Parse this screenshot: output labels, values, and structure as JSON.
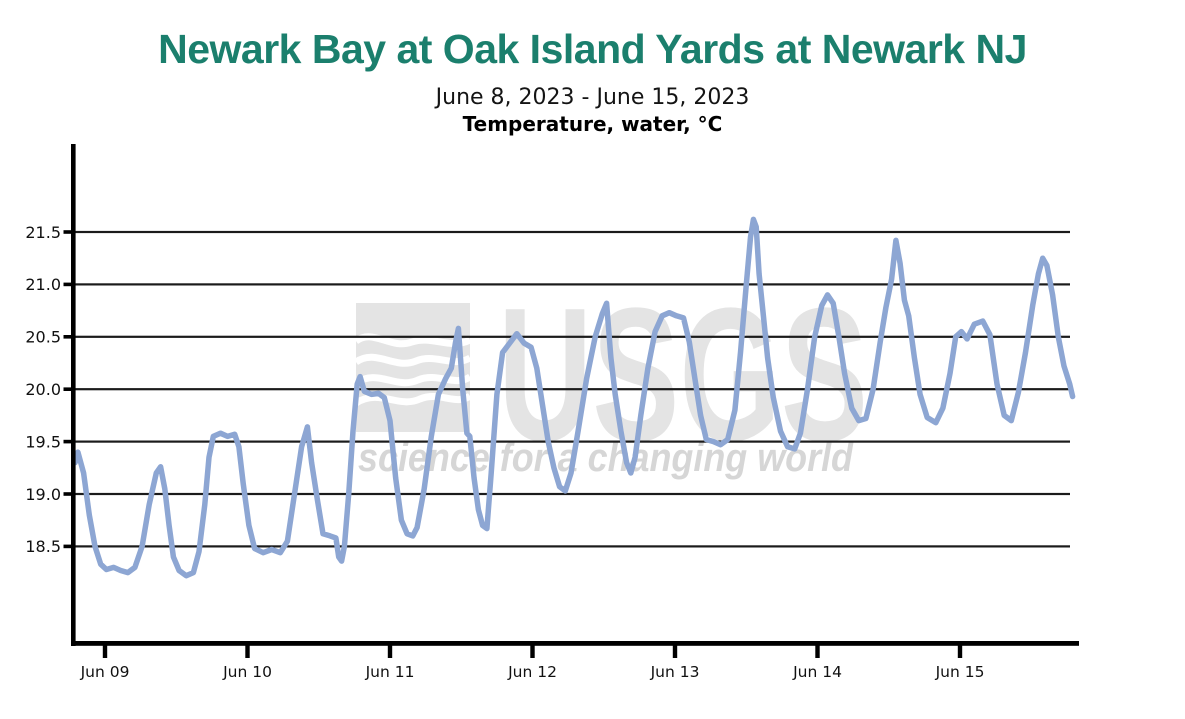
{
  "header": {
    "title": "Newark Bay at Oak Island Yards at Newark NJ",
    "title_color": "#1b7f6d",
    "date_range": "June 8, 2023 - June 15, 2023",
    "parameter": "Temperature, water, °C"
  },
  "watermark": {
    "logo_text": "USGS",
    "tagline": "science for a changing world",
    "logo_color": "#e4e4e4",
    "tagline_color": "#d6d6d6"
  },
  "chart_data": {
    "type": "line",
    "title": "Newark Bay at Oak Island Yards at Newark NJ",
    "subtitle": "June 8, 2023 - June 15, 2023",
    "ylabel": "Temperature, water, °C",
    "xlabel": "",
    "x_unit": "days since June 8, 2023 00:00 (t=1 is Jun 09 00:00)",
    "grid": "horizontal",
    "legend": "none",
    "xlim": [
      0.77,
      7.81
    ],
    "ylim": [
      17.9,
      21.9
    ],
    "yticks": [
      21.5,
      21.0,
      20.5,
      20.0,
      19.5,
      19.0,
      18.5
    ],
    "xticks": [
      {
        "label": "Jun 09",
        "t": 1
      },
      {
        "label": "Jun 10",
        "t": 2
      },
      {
        "label": "Jun 11",
        "t": 3
      },
      {
        "label": "Jun 12",
        "t": 4
      },
      {
        "label": "Jun 13",
        "t": 5
      },
      {
        "label": "Jun 14",
        "t": 6
      },
      {
        "label": "Jun 15",
        "t": 7
      }
    ],
    "axis_color": "#000000",
    "grid_color": "#1b1b1b",
    "series": [
      {
        "name": "Temperature, water, °C",
        "color": "#8da6d3",
        "points": [
          [
            0.79,
            19.3
          ],
          [
            0.81,
            19.4
          ],
          [
            0.85,
            19.2
          ],
          [
            0.89,
            18.8
          ],
          [
            0.93,
            18.5
          ],
          [
            0.97,
            18.33
          ],
          [
            1.01,
            18.28
          ],
          [
            1.06,
            18.3
          ],
          [
            1.11,
            18.27
          ],
          [
            1.16,
            18.25
          ],
          [
            1.21,
            18.3
          ],
          [
            1.26,
            18.5
          ],
          [
            1.31,
            18.9
          ],
          [
            1.36,
            19.2
          ],
          [
            1.39,
            19.26
          ],
          [
            1.42,
            19.05
          ],
          [
            1.45,
            18.7
          ],
          [
            1.48,
            18.4
          ],
          [
            1.52,
            18.27
          ],
          [
            1.57,
            18.22
          ],
          [
            1.62,
            18.25
          ],
          [
            1.66,
            18.45
          ],
          [
            1.7,
            18.9
          ],
          [
            1.73,
            19.35
          ],
          [
            1.76,
            19.55
          ],
          [
            1.81,
            19.58
          ],
          [
            1.86,
            19.55
          ],
          [
            1.91,
            19.57
          ],
          [
            1.94,
            19.45
          ],
          [
            1.97,
            19.1
          ],
          [
            2.01,
            18.7
          ],
          [
            2.05,
            18.48
          ],
          [
            2.11,
            18.44
          ],
          [
            2.17,
            18.47
          ],
          [
            2.23,
            18.44
          ],
          [
            2.28,
            18.55
          ],
          [
            2.33,
            19.0
          ],
          [
            2.38,
            19.45
          ],
          [
            2.42,
            19.64
          ],
          [
            2.45,
            19.3
          ],
          [
            2.49,
            18.95
          ],
          [
            2.53,
            18.62
          ],
          [
            2.58,
            18.6
          ],
          [
            2.62,
            18.58
          ],
          [
            2.64,
            18.4
          ],
          [
            2.66,
            18.36
          ],
          [
            2.68,
            18.5
          ],
          [
            2.71,
            19.0
          ],
          [
            2.74,
            19.6
          ],
          [
            2.77,
            20.05
          ],
          [
            2.79,
            20.12
          ],
          [
            2.82,
            19.98
          ],
          [
            2.87,
            19.95
          ],
          [
            2.92,
            19.96
          ],
          [
            2.96,
            19.92
          ],
          [
            3.0,
            19.7
          ],
          [
            3.04,
            19.15
          ],
          [
            3.08,
            18.75
          ],
          [
            3.12,
            18.62
          ],
          [
            3.16,
            18.6
          ],
          [
            3.19,
            18.68
          ],
          [
            3.24,
            19.05
          ],
          [
            3.29,
            19.55
          ],
          [
            3.34,
            19.95
          ],
          [
            3.39,
            20.1
          ],
          [
            3.43,
            20.2
          ],
          [
            3.46,
            20.45
          ],
          [
            3.48,
            20.58
          ],
          [
            3.51,
            20.0
          ],
          [
            3.54,
            19.58
          ],
          [
            3.56,
            19.55
          ],
          [
            3.59,
            19.15
          ],
          [
            3.62,
            18.85
          ],
          [
            3.65,
            18.7
          ],
          [
            3.68,
            18.67
          ],
          [
            3.71,
            19.2
          ],
          [
            3.75,
            19.95
          ],
          [
            3.79,
            20.35
          ],
          [
            3.84,
            20.44
          ],
          [
            3.89,
            20.53
          ],
          [
            3.94,
            20.44
          ],
          [
            3.99,
            20.4
          ],
          [
            4.03,
            20.2
          ],
          [
            4.07,
            19.85
          ],
          [
            4.11,
            19.5
          ],
          [
            4.15,
            19.25
          ],
          [
            4.19,
            19.07
          ],
          [
            4.23,
            19.03
          ],
          [
            4.27,
            19.2
          ],
          [
            4.32,
            19.6
          ],
          [
            4.38,
            20.1
          ],
          [
            4.44,
            20.5
          ],
          [
            4.49,
            20.72
          ],
          [
            4.52,
            20.82
          ],
          [
            4.55,
            20.3
          ],
          [
            4.58,
            19.95
          ],
          [
            4.62,
            19.6
          ],
          [
            4.66,
            19.3
          ],
          [
            4.69,
            19.2
          ],
          [
            4.72,
            19.35
          ],
          [
            4.76,
            19.75
          ],
          [
            4.81,
            20.2
          ],
          [
            4.86,
            20.55
          ],
          [
            4.91,
            20.7
          ],
          [
            4.96,
            20.73
          ],
          [
            5.01,
            20.7
          ],
          [
            5.06,
            20.68
          ],
          [
            5.1,
            20.45
          ],
          [
            5.14,
            20.1
          ],
          [
            5.18,
            19.75
          ],
          [
            5.22,
            19.52
          ],
          [
            5.27,
            19.5
          ],
          [
            5.32,
            19.47
          ],
          [
            5.37,
            19.52
          ],
          [
            5.42,
            19.8
          ],
          [
            5.46,
            20.35
          ],
          [
            5.5,
            21.0
          ],
          [
            5.53,
            21.45
          ],
          [
            5.55,
            21.62
          ],
          [
            5.57,
            21.55
          ],
          [
            5.59,
            21.1
          ],
          [
            5.62,
            20.7
          ],
          [
            5.65,
            20.3
          ],
          [
            5.69,
            19.92
          ],
          [
            5.74,
            19.6
          ],
          [
            5.79,
            19.45
          ],
          [
            5.84,
            19.43
          ],
          [
            5.88,
            19.58
          ],
          [
            5.93,
            20.0
          ],
          [
            5.98,
            20.5
          ],
          [
            6.03,
            20.8
          ],
          [
            6.07,
            20.9
          ],
          [
            6.11,
            20.82
          ],
          [
            6.15,
            20.5
          ],
          [
            6.19,
            20.15
          ],
          [
            6.24,
            19.82
          ],
          [
            6.29,
            19.7
          ],
          [
            6.34,
            19.72
          ],
          [
            6.39,
            20.0
          ],
          [
            6.44,
            20.45
          ],
          [
            6.48,
            20.78
          ],
          [
            6.52,
            21.05
          ],
          [
            6.55,
            21.42
          ],
          [
            6.58,
            21.2
          ],
          [
            6.61,
            20.85
          ],
          [
            6.64,
            20.7
          ],
          [
            6.68,
            20.3
          ],
          [
            6.72,
            19.95
          ],
          [
            6.77,
            19.73
          ],
          [
            6.83,
            19.68
          ],
          [
            6.88,
            19.82
          ],
          [
            6.93,
            20.15
          ],
          [
            6.97,
            20.5
          ],
          [
            7.01,
            20.55
          ],
          [
            7.05,
            20.48
          ],
          [
            7.1,
            20.62
          ],
          [
            7.16,
            20.65
          ],
          [
            7.21,
            20.52
          ],
          [
            7.26,
            20.05
          ],
          [
            7.31,
            19.75
          ],
          [
            7.36,
            19.7
          ],
          [
            7.41,
            19.97
          ],
          [
            7.46,
            20.35
          ],
          [
            7.51,
            20.8
          ],
          [
            7.55,
            21.1
          ],
          [
            7.58,
            21.25
          ],
          [
            7.61,
            21.18
          ],
          [
            7.65,
            20.9
          ],
          [
            7.69,
            20.5
          ],
          [
            7.73,
            20.22
          ],
          [
            7.77,
            20.05
          ],
          [
            7.79,
            19.93
          ]
        ]
      }
    ]
  }
}
